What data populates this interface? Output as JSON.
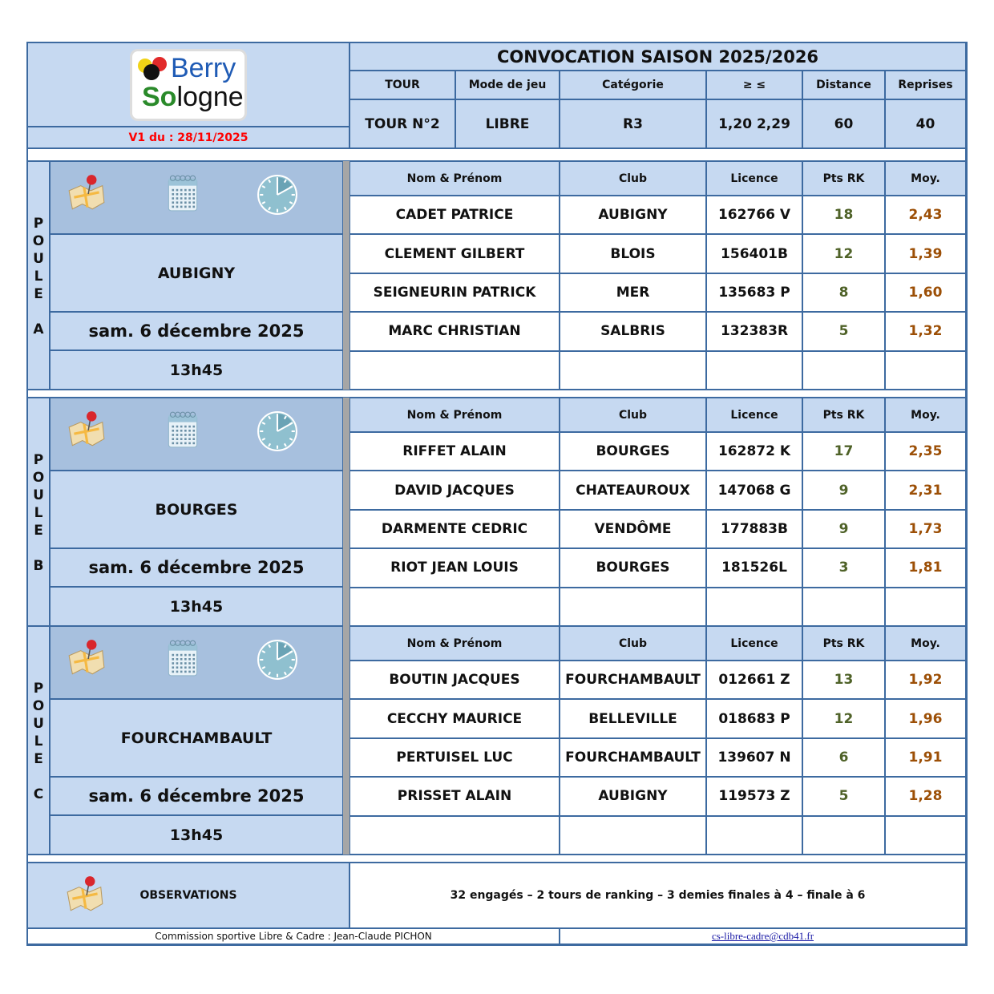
{
  "header": {
    "title": "CONVOCATION SAISON 2025/2026",
    "version": "V1 du : 28/11/2025",
    "logo_text": "Berry Sologne",
    "columns": [
      "TOUR",
      "Mode de jeu",
      "Catégorie",
      "≥  ≤",
      "Distance",
      "Reprises"
    ],
    "values": [
      "TOUR N°2",
      "LIBRE",
      "R3",
      "1,20  2,29",
      "60",
      "40"
    ]
  },
  "table_headers": [
    "Nom & Prénom",
    "Club",
    "Licence",
    "Pts RK",
    "Moy."
  ],
  "colors": {
    "light_blue": "#c6d9f1",
    "icon_blue": "#a7c0de",
    "border": "#3d6aa0",
    "pts": "#4f6228",
    "moy": "#9c4f06",
    "version": "#ff0000"
  },
  "poules": [
    {
      "label": [
        "P",
        "O",
        "U",
        "L",
        "E",
        "",
        "A"
      ],
      "city": "AUBIGNY",
      "date": "sam. 6 décembre 2025",
      "time": "13h45",
      "players": [
        [
          "CADET PATRICE",
          "AUBIGNY",
          "162766 V",
          "18",
          "2,43"
        ],
        [
          "CLEMENT GILBERT",
          "BLOIS",
          "156401B",
          "12",
          "1,39"
        ],
        [
          "SEIGNEURIN PATRICK",
          "MER",
          "135683 P",
          "8",
          "1,60"
        ],
        [
          "MARC CHRISTIAN",
          "SALBRIS",
          "132383R",
          "5",
          "1,32"
        ]
      ]
    },
    {
      "label": [
        "P",
        "O",
        "U",
        "L",
        "E",
        "",
        "B"
      ],
      "city": "BOURGES",
      "date": "sam. 6 décembre 2025",
      "time": "13h45",
      "players": [
        [
          "RIFFET ALAIN",
          "BOURGES",
          "162872 K",
          "17",
          "2,35"
        ],
        [
          "DAVID JACQUES",
          "CHATEAUROUX",
          "147068 G",
          "9",
          "2,31"
        ],
        [
          "DARMENTE CEDRIC",
          "VENDÔME",
          "177883B",
          "9",
          "1,73"
        ],
        [
          "RIOT JEAN LOUIS",
          "BOURGES",
          "181526L",
          "3",
          "1,81"
        ]
      ]
    },
    {
      "label": [
        "P",
        "O",
        "U",
        "L",
        "E",
        "",
        "C"
      ],
      "city": "FOURCHAMBAULT",
      "date": "sam. 6 décembre 2025",
      "time": "13h45",
      "players": [
        [
          "BOUTIN JACQUES",
          "FOURCHAMBAULT",
          "012661 Z",
          "13",
          "1,92"
        ],
        [
          "CECCHY MAURICE",
          "BELLEVILLE",
          "018683 P",
          "12",
          "1,96"
        ],
        [
          "PERTUISEL LUC",
          "FOURCHAMBAULT",
          "139607 N",
          "6",
          "1,91"
        ],
        [
          "PRISSET ALAIN",
          "AUBIGNY",
          "119573 Z",
          "5",
          "1,28"
        ]
      ]
    }
  ],
  "observations": {
    "label": "OBSERVATIONS",
    "text": "32 engagés – 2 tours de ranking – 3 demies finales à 4 – finale à 6"
  },
  "footer": {
    "commission": "Commission sportive Libre & Cadre : Jean-Claude PICHON",
    "email": "cs-libre-cadre@cdb41.fr"
  }
}
